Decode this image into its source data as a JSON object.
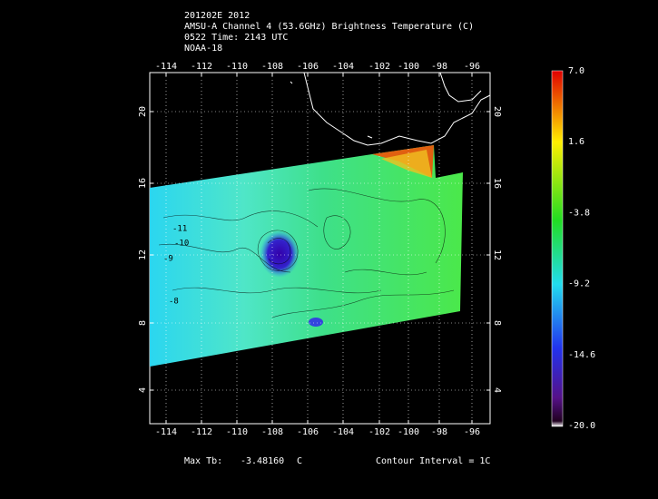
{
  "header": {
    "lines": [
      "201202E 2012",
      "AMSU-A Channel 4 (53.6GHz) Brightness Temperature (C)",
      "0522 Time: 2143 UTC",
      "NOAA-18"
    ]
  },
  "map": {
    "longitude_labels": [
      "-114",
      "-112",
      "-110",
      "-108",
      "-106",
      "-104",
      "-102",
      "-100",
      "-98",
      "-96"
    ],
    "latitude_labels": [
      "20",
      "16",
      "12",
      "8",
      "4"
    ],
    "contour_labels": [
      "-11",
      "-10",
      "-9",
      "-8"
    ]
  },
  "colorbar": {
    "labels": [
      "7.0",
      "1.6",
      "-3.8",
      "-9.2",
      "-14.6",
      "-20.0"
    ]
  },
  "footer": {
    "max_label": "Max Tb:",
    "max_value": "-3.48160",
    "max_unit": "C",
    "contour_interval": "Contour Interval = 1C"
  }
}
